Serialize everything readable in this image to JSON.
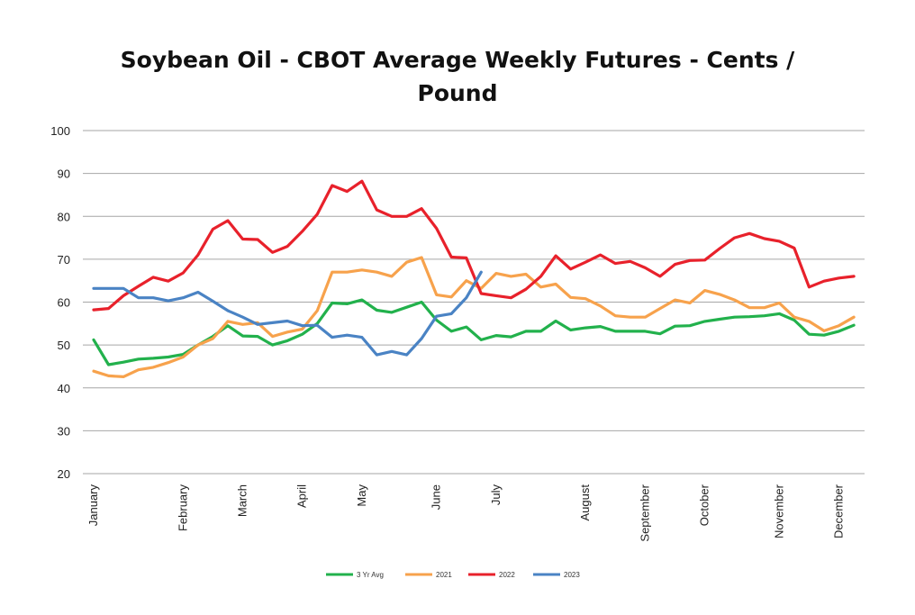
{
  "chart_data": {
    "type": "line",
    "title_lines": [
      "Soybean Oil - CBOT Average Weekly Futures - Cents /",
      "Pound"
    ],
    "xlabel": "",
    "ylabel": "",
    "ylim": [
      20,
      100
    ],
    "yticks": [
      20,
      30,
      40,
      50,
      60,
      70,
      80,
      90,
      100
    ],
    "x_week_count": 52,
    "month_labels": [
      "January",
      "February",
      "March",
      "April",
      "May",
      "June",
      "July",
      "August",
      "September",
      "October",
      "November",
      "December"
    ],
    "month_start_week": [
      1,
      7,
      11,
      15,
      19,
      24,
      28,
      34,
      38,
      42,
      47,
      51
    ],
    "grid": true,
    "legend_position": "bottom",
    "series": [
      {
        "name": "3 Yr Avg",
        "color": "#22b14c",
        "values": [
          51.2,
          45.4,
          46,
          46.7,
          46.9,
          47.2,
          47.8,
          50,
          52,
          54.5,
          52.1,
          52,
          50,
          51,
          52.5,
          55,
          59.8,
          59.6,
          60.5,
          58.1,
          57.6,
          58.8,
          60,
          55.8,
          53.2,
          54.2,
          51.2,
          52.2,
          51.9,
          53.2,
          53.2,
          55.6,
          53.5,
          54,
          54.3,
          53.2,
          53.2,
          53.2,
          52.6,
          54.4,
          54.5,
          55.5,
          56,
          56.5,
          56.6,
          56.8,
          57.3,
          55.8,
          52.5,
          52.3,
          53.2,
          54.6
        ]
      },
      {
        "name": "2021",
        "color": "#f7a24c",
        "values": [
          43.9,
          42.8,
          42.6,
          44.2,
          44.8,
          45.9,
          47.2,
          50,
          51.5,
          55.5,
          54.8,
          55.2,
          52,
          53,
          53.7,
          58,
          67,
          67,
          67.5,
          67,
          66,
          69.3,
          70.4,
          61.7,
          61.2,
          65,
          63.2,
          66.7,
          66,
          66.5,
          63.5,
          64.2,
          61.1,
          60.8,
          59.1,
          56.8,
          56.5,
          56.5,
          58.5,
          60.5,
          59.8,
          62.7,
          61.8,
          60.5,
          58.7,
          58.7,
          59.8,
          56.5,
          55.5,
          53.3,
          54.5,
          56.5
        ]
      },
      {
        "name": "2022",
        "color": "#e8212b",
        "values": [
          58.2,
          58.5,
          61.5,
          63.7,
          65.8,
          64.9,
          66.8,
          71,
          77,
          79,
          74.7,
          74.6,
          71.6,
          73,
          76.5,
          80.5,
          87.2,
          85.8,
          88.2,
          81.5,
          80,
          80,
          81.8,
          77.2,
          70.5,
          70.3,
          62,
          61.5,
          61,
          63,
          66,
          70.8,
          67.7,
          69.3,
          71,
          69,
          69.5,
          68,
          66,
          68.8,
          69.7,
          69.8,
          72.5,
          75,
          76,
          74.8,
          74.2,
          72.6,
          63.5,
          64.9,
          65.6,
          66
        ]
      },
      {
        "name": "2023",
        "color": "#4a83c4",
        "values": [
          63.2,
          63.2,
          63.2,
          61,
          61,
          60.3,
          61,
          62.3,
          60.2,
          58,
          56.5,
          54.8,
          55.2,
          55.6,
          54.5,
          54.6,
          51.8,
          52.3,
          51.8,
          47.7,
          48.5,
          47.7,
          51.5,
          56.7,
          57.3,
          61,
          67,
          null,
          null,
          null,
          null,
          null,
          null,
          null,
          null,
          null,
          null,
          null,
          null,
          null,
          null,
          null,
          null,
          null,
          null,
          null,
          null,
          null,
          null,
          null,
          null,
          null
        ]
      }
    ]
  }
}
